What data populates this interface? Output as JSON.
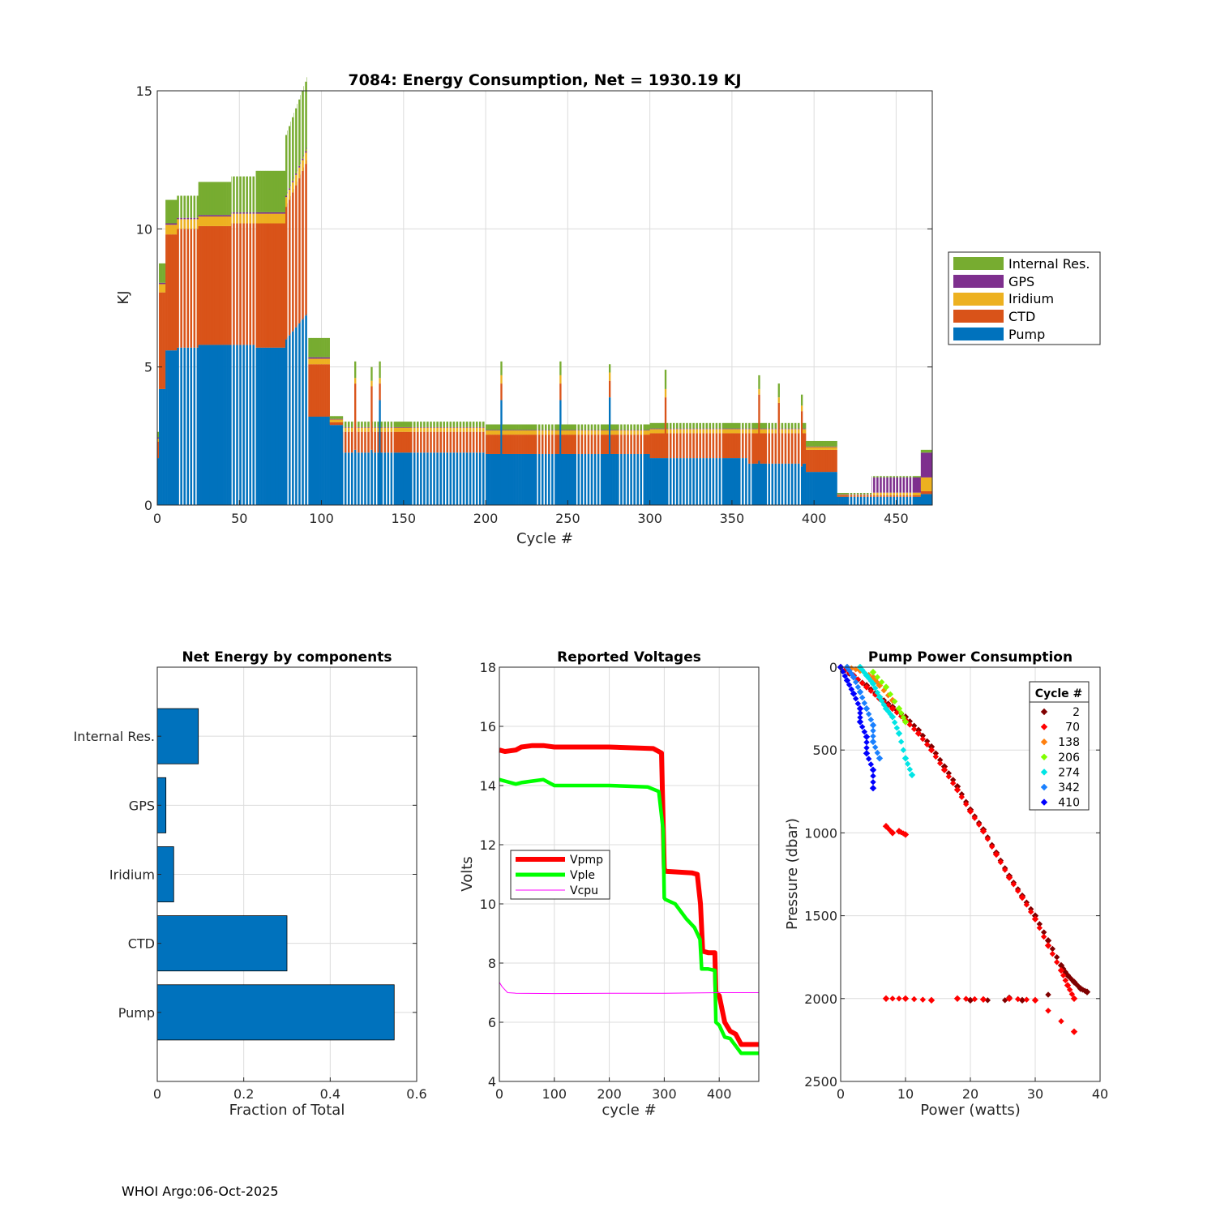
{
  "footer": "WHOI Argo:06-Oct-2025",
  "chart_data": [
    {
      "type": "bar",
      "stacked": true,
      "title": "7084: Energy Consumption,  Net = 1930.19 KJ",
      "xlabel": "Cycle #",
      "ylabel": "KJ",
      "xlim": [
        0,
        472
      ],
      "ylim": [
        0,
        15
      ],
      "xticks": [
        "0",
        "50",
        "100",
        "150",
        "200",
        "250",
        "300",
        "350",
        "400",
        "450"
      ],
      "yticks": [
        "0",
        "5",
        "10",
        "15"
      ],
      "legend_position": "outside-right",
      "legend": [
        "Internal Res.",
        "GPS",
        "Iridium",
        "CTD",
        "Pump"
      ],
      "series_colors": {
        "Pump": "#0072bd",
        "CTD": "#d95319",
        "Iridium": "#edb120",
        "GPS": "#7e2f8e",
        "Internal Res.": "#77ac30"
      },
      "segments": [
        {
          "cycles": [
            0,
            1
          ],
          "Pump": 1.7,
          "CTD": 0.6,
          "Iridium": 0.1,
          "GPS": 0.05,
          "Internal Res.": 0.2
        },
        {
          "cycles": [
            1,
            5
          ],
          "Pump": 4.2,
          "CTD": 3.5,
          "Iridium": 0.3,
          "GPS": 0.05,
          "Internal Res.": 0.7
        },
        {
          "cycles": [
            5,
            12
          ],
          "Pump": 5.6,
          "CTD": 4.2,
          "Iridium": 0.35,
          "GPS": 0.05,
          "Internal Res.": 0.85
        },
        {
          "cycles": [
            12,
            25
          ],
          "Pump": 5.7,
          "CTD": 4.3,
          "Iridium": 0.35,
          "GPS": 0.05,
          "Internal Res.": 0.8
        },
        {
          "cycles": [
            25,
            45
          ],
          "Pump": 5.8,
          "CTD": 4.3,
          "Iridium": 0.35,
          "GPS": 0.05,
          "Internal Res.": 1.2
        },
        {
          "cycles": [
            45,
            60
          ],
          "Pump": 5.8,
          "CTD": 4.4,
          "Iridium": 0.35,
          "GPS": 0.05,
          "Internal Res.": 1.3
        },
        {
          "cycles": [
            60,
            78
          ],
          "Pump": 5.7,
          "CTD": 4.5,
          "Iridium": 0.35,
          "GPS": 0.05,
          "Internal Res.": 1.5
        },
        {
          "cycles": [
            78,
            92
          ],
          "Pump": 6.0,
          "CTD": 4.8,
          "Iridium": 0.35,
          "GPS": 0.05,
          "Internal Res.": 2.2
        },
        {
          "cycles": [
            92,
            105
          ],
          "Pump": 3.2,
          "CTD": 1.9,
          "Iridium": 0.2,
          "GPS": 0.05,
          "Internal Res.": 0.7
        },
        {
          "cycles": [
            105,
            113
          ],
          "Pump": 2.9,
          "CTD": 0.1,
          "Iridium": 0.1,
          "GPS": 0.02,
          "Internal Res.": 0.1
        },
        {
          "cycles": [
            113,
            200
          ],
          "Pump": 1.9,
          "CTD": 0.75,
          "Iridium": 0.15,
          "GPS": 0.02,
          "Internal Res.": 0.2
        },
        {
          "cycles": [
            200,
            300
          ],
          "Pump": 1.85,
          "CTD": 0.7,
          "Iridium": 0.15,
          "GPS": 0.02,
          "Internal Res.": 0.2
        },
        {
          "cycles": [
            300,
            360
          ],
          "Pump": 1.7,
          "CTD": 0.9,
          "Iridium": 0.15,
          "GPS": 0.02,
          "Internal Res.": 0.2
        },
        {
          "cycles": [
            360,
            395
          ],
          "Pump": 1.5,
          "CTD": 1.1,
          "Iridium": 0.15,
          "GPS": 0.02,
          "Internal Res.": 0.2
        },
        {
          "cycles": [
            395,
            414
          ],
          "Pump": 1.2,
          "CTD": 0.8,
          "Iridium": 0.1,
          "GPS": 0.02,
          "Internal Res.": 0.2
        },
        {
          "cycles": [
            414,
            435
          ],
          "Pump": 0.3,
          "CTD": 0.05,
          "Iridium": 0.02,
          "GPS": 0.02,
          "Internal Res.": 0.05
        },
        {
          "cycles": [
            435,
            465
          ],
          "Pump": 0.3,
          "CTD": 0.05,
          "Iridium": 0.1,
          "GPS": 0.55,
          "Internal Res.": 0.05
        },
        {
          "cycles": [
            465,
            472
          ],
          "Pump": 0.4,
          "CTD": 0.1,
          "Iridium": 0.5,
          "GPS": 0.9,
          "Internal Res.": 0.1
        }
      ],
      "spikes": [
        {
          "cycle": 120,
          "Pump": 2.0,
          "CTD": 2.4,
          "Iridium": 0.2,
          "GPS": 0.0,
          "Internal Res.": 0.6
        },
        {
          "cycle": 130,
          "Pump": 2.0,
          "CTD": 2.3,
          "Iridium": 0.2,
          "GPS": 0.0,
          "Internal Res.": 0.5
        },
        {
          "cycle": 135,
          "Pump": 3.8,
          "CTD": 0.6,
          "Iridium": 0.2,
          "GPS": 0.0,
          "Internal Res.": 0.6
        },
        {
          "cycle": 209,
          "Pump": 3.8,
          "CTD": 0.6,
          "Iridium": 0.3,
          "GPS": 0.0,
          "Internal Res.": 0.5
        },
        {
          "cycle": 245,
          "Pump": 3.8,
          "CTD": 0.6,
          "Iridium": 0.3,
          "GPS": 0.0,
          "Internal Res.": 0.5
        },
        {
          "cycle": 275,
          "Pump": 3.9,
          "CTD": 0.6,
          "Iridium": 0.3,
          "GPS": 0.0,
          "Internal Res.": 0.3
        },
        {
          "cycle": 309,
          "Pump": 1.7,
          "CTD": 2.2,
          "Iridium": 0.3,
          "GPS": 0.0,
          "Internal Res.": 0.7
        },
        {
          "cycle": 366,
          "Pump": 1.6,
          "CTD": 2.4,
          "Iridium": 0.2,
          "GPS": 0.0,
          "Internal Res.": 0.5
        },
        {
          "cycle": 378,
          "Pump": 1.5,
          "CTD": 2.2,
          "Iridium": 0.2,
          "GPS": 0.0,
          "Internal Res.": 0.5
        },
        {
          "cycle": 392,
          "Pump": 1.4,
          "CTD": 2.0,
          "Iridium": 0.2,
          "GPS": 0.0,
          "Internal Res.": 0.4
        }
      ],
      "gap_cycles": [
        [
          12,
          25
        ],
        [
          45,
          60
        ],
        [
          78,
          92
        ],
        [
          113,
          145
        ],
        [
          155,
          200
        ],
        [
          230,
          242
        ],
        [
          255,
          270
        ],
        [
          280,
          296
        ],
        [
          310,
          345
        ],
        [
          355,
          362
        ],
        [
          370,
          393
        ],
        [
          420,
          460
        ]
      ]
    },
    {
      "type": "bar",
      "orientation": "horizontal",
      "title": "Net Energy by components",
      "xlabel": "Fraction of Total",
      "xlim": [
        0,
        0.6
      ],
      "xticks": [
        "0",
        "0.2",
        "0.4",
        "0.6"
      ],
      "categories": [
        "Internal Res.",
        "GPS",
        "Iridium",
        "CTD",
        "Pump"
      ],
      "values": [
        0.095,
        0.02,
        0.038,
        0.3,
        0.548
      ],
      "color": "#0072bd"
    },
    {
      "type": "line",
      "title": "Reported Voltages",
      "xlabel": "cycle #",
      "ylabel": "Volts",
      "xlim": [
        0,
        472
      ],
      "ylim": [
        4,
        18
      ],
      "xticks": [
        "0",
        "100",
        "200",
        "300",
        "400"
      ],
      "yticks": [
        "4",
        "6",
        "8",
        "10",
        "12",
        "14",
        "16",
        "18"
      ],
      "legend_position": "center-left",
      "series": [
        {
          "name": "Vpmp",
          "color": "#ff0000",
          "x": [
            0,
            10,
            30,
            40,
            60,
            80,
            100,
            200,
            280,
            295,
            300,
            302,
            350,
            360,
            366,
            370,
            380,
            392,
            394,
            400,
            410,
            420,
            430,
            440,
            472
          ],
          "y": [
            15.2,
            15.15,
            15.2,
            15.3,
            15.35,
            15.35,
            15.3,
            15.3,
            15.25,
            15.1,
            11.2,
            11.1,
            11.05,
            11.0,
            10.0,
            8.4,
            8.35,
            8.35,
            7.0,
            6.9,
            6.0,
            5.7,
            5.6,
            5.25,
            5.25
          ]
        },
        {
          "name": "Vple",
          "color": "#00ff00",
          "x": [
            0,
            10,
            30,
            40,
            60,
            80,
            100,
            200,
            270,
            290,
            298,
            300,
            302,
            320,
            340,
            355,
            365,
            368,
            380,
            392,
            394,
            400,
            410,
            420,
            430,
            440,
            472
          ],
          "y": [
            14.2,
            14.15,
            14.05,
            14.1,
            14.15,
            14.2,
            14.0,
            14.0,
            13.95,
            13.8,
            12.5,
            10.2,
            10.15,
            10.0,
            9.5,
            9.2,
            8.8,
            7.8,
            7.8,
            7.75,
            6.0,
            5.9,
            5.5,
            5.45,
            5.2,
            4.95,
            4.95
          ]
        },
        {
          "name": "Vcpu",
          "color": "#ff00ff",
          "x": [
            0,
            5,
            15,
            30,
            100,
            200,
            300,
            400,
            472
          ],
          "y": [
            7.35,
            7.2,
            7.0,
            6.98,
            6.97,
            6.98,
            6.98,
            7.0,
            7.0
          ]
        }
      ]
    },
    {
      "type": "scatter",
      "title": "Pump Power Consumption",
      "xlabel": "Power (watts)",
      "ylabel": "Pressure (dbar)",
      "xlim": [
        0,
        40
      ],
      "ylim": [
        0,
        2500
      ],
      "y_reversed": true,
      "xticks": [
        "0",
        "10",
        "20",
        "30",
        "40"
      ],
      "yticks": [
        "0",
        "500",
        "1000",
        "1500",
        "2000",
        "2500"
      ],
      "legend_title": "Cycle #",
      "legend_position": "top-right",
      "series": [
        {
          "name": "2",
          "color": "#800000",
          "x": [
            0,
            2,
            4,
            6,
            8,
            10,
            12,
            14,
            16,
            18,
            20,
            22,
            24,
            26,
            28,
            30,
            32,
            34,
            35,
            36,
            37,
            38,
            20,
            28
          ],
          "y": [
            0,
            60,
            110,
            180,
            240,
            300,
            380,
            480,
            600,
            720,
            860,
            980,
            1120,
            1260,
            1380,
            1500,
            1650,
            1800,
            1860,
            1900,
            1940,
            1960,
            2010,
            2010
          ]
        },
        {
          "name": "70",
          "color": "#ff0000",
          "x": [
            0,
            2,
            4,
            6,
            8,
            10,
            12,
            14,
            16,
            18,
            20,
            22,
            24,
            26,
            28,
            30,
            32,
            34,
            35,
            36,
            7,
            8,
            9,
            10,
            7,
            10,
            14,
            18,
            22,
            26,
            30,
            36
          ],
          "y": [
            0,
            50,
            120,
            190,
            250,
            320,
            400,
            500,
            620,
            740,
            870,
            990,
            1130,
            1270,
            1390,
            1520,
            1680,
            1830,
            1920,
            2000,
            960,
            1000,
            990,
            1010,
            2000,
            2000,
            2010,
            2000,
            2005,
            2000,
            2010,
            2200
          ]
        },
        {
          "name": "138",
          "color": "#ff7f0e",
          "x": [
            1,
            3,
            5,
            6,
            8
          ],
          "y": [
            0,
            20,
            60,
            110,
            200
          ]
        },
        {
          "name": "206",
          "color": "#80ff00",
          "x": [
            5,
            7,
            9,
            10
          ],
          "y": [
            30,
            120,
            250,
            330
          ]
        },
        {
          "name": "274",
          "color": "#00e5e5",
          "x": [
            3,
            4,
            5,
            6,
            7,
            8,
            9,
            10,
            11
          ],
          "y": [
            0,
            50,
            100,
            180,
            250,
            300,
            400,
            550,
            650
          ]
        },
        {
          "name": "342",
          "color": "#1a80ff",
          "x": [
            1,
            2,
            3,
            4,
            5,
            5,
            6
          ],
          "y": [
            0,
            60,
            150,
            250,
            350,
            450,
            550
          ]
        },
        {
          "name": "410",
          "color": "#0000ff",
          "x": [
            0,
            1,
            2,
            3,
            3,
            4,
            4,
            5,
            5
          ],
          "y": [
            0,
            80,
            160,
            250,
            330,
            420,
            520,
            620,
            730
          ]
        }
      ]
    }
  ]
}
